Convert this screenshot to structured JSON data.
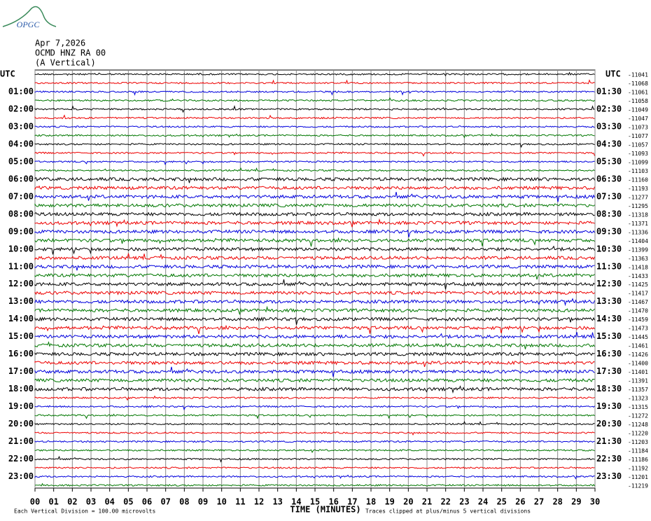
{
  "logo": "OPGC",
  "header": {
    "lines": [
      "Apr 7,2026",
      "OCMD HNZ RA 00",
      "(A Vertical)"
    ]
  },
  "left_title": "UTC",
  "right_title": "UTC",
  "left_labels": [
    "01:00",
    "02:00",
    "03:00",
    "04:00",
    "05:00",
    "06:00",
    "07:00",
    "08:00",
    "09:00",
    "10:00",
    "11:00",
    "12:00",
    "13:00",
    "14:00",
    "15:00",
    "16:00",
    "17:00",
    "18:00",
    "19:00",
    "20:00",
    "21:00",
    "22:00",
    "23:00"
  ],
  "right_labels": [
    "01:30",
    "02:30",
    "03:30",
    "04:30",
    "05:30",
    "06:30",
    "07:30",
    "08:30",
    "09:30",
    "10:30",
    "11:30",
    "12:30",
    "13:30",
    "14:30",
    "15:30",
    "16:30",
    "17:30",
    "18:30",
    "19:30",
    "20:30",
    "21:30",
    "22:30",
    "23:30"
  ],
  "offsets": [
    "-11041",
    "-11068",
    "-11061",
    "-11058",
    "-11049",
    "-11047",
    "-11073",
    "-11077",
    "-11057",
    "-11093",
    "-11099",
    "-11103",
    "-11160",
    "-11193",
    "-11277",
    "-11295",
    "-11318",
    "-11371",
    "-11336",
    "-11404",
    "-11399",
    "-11363",
    "-11418",
    "-11433",
    "-11425",
    "-11417",
    "-11467",
    "-11470",
    "-11459",
    "-11473",
    "-11445",
    "-11461",
    "-11426",
    "-11400",
    "-11401",
    "-11391",
    "-11357",
    "-11323",
    "-11315",
    "-11272",
    "-11248",
    "-11220",
    "-11203",
    "-11184",
    "-11186",
    "-11192",
    "-11201",
    "-11219"
  ],
  "x_ticks": [
    "00",
    "01",
    "02",
    "03",
    "04",
    "05",
    "06",
    "07",
    "08",
    "09",
    "10",
    "11",
    "12",
    "13",
    "14",
    "15",
    "16",
    "17",
    "18",
    "19",
    "20",
    "21",
    "22",
    "23",
    "24",
    "25",
    "26",
    "27",
    "28",
    "29",
    "30"
  ],
  "x_title": "TIME (MINUTES)",
  "footer": {
    "scale": "Each Vertical Division =  100.00 microvolts",
    "clip": "Traces clipped at plus/minus 5 vertical divisions"
  }
}
